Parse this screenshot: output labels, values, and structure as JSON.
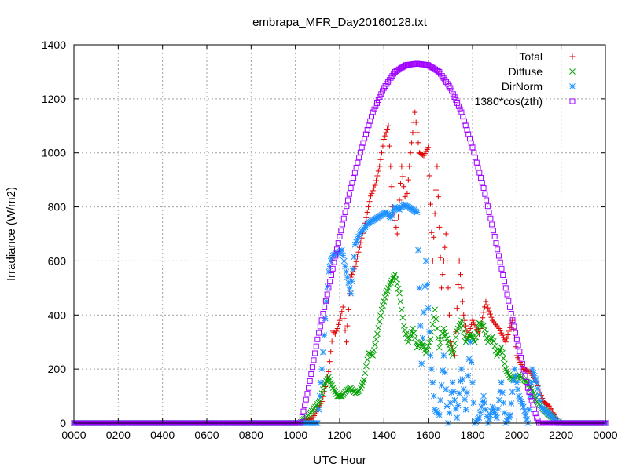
{
  "chart_data": {
    "type": "scatter",
    "title": "embrapa_MFR_Day20160128.txt",
    "xlabel": "UTC Hour",
    "ylabel": "Irradiance (W/m2)",
    "xlim": [
      0,
      24
    ],
    "ylim": [
      0,
      1400
    ],
    "x_ticks": [
      0,
      2,
      4,
      6,
      8,
      10,
      12,
      14,
      16,
      18,
      20,
      22,
      24
    ],
    "x_tick_labels": [
      "0000",
      "0200",
      "0400",
      "0600",
      "0800",
      "1000",
      "1200",
      "1400",
      "1600",
      "1800",
      "2000",
      "2200",
      "0000"
    ],
    "y_ticks": [
      0,
      200,
      400,
      600,
      800,
      1000,
      1200,
      1400
    ],
    "y_tick_labels": [
      "0",
      "200",
      "400",
      "600",
      "800",
      "1000",
      "1200",
      "1400"
    ],
    "grid": true,
    "legend_position": "top-right",
    "series": [
      {
        "name": "Total",
        "marker": "plus",
        "color": "#e00000",
        "points": [
          [
            0,
            0
          ],
          [
            3,
            0
          ],
          [
            6,
            0
          ],
          [
            9,
            0
          ],
          [
            10.2,
            0
          ],
          [
            10.8,
            20
          ],
          [
            11.2,
            80
          ],
          [
            11.5,
            190
          ],
          [
            11.7,
            340
          ],
          [
            11.8,
            330
          ],
          [
            11.9,
            350
          ],
          [
            12.0,
            380
          ],
          [
            12.15,
            430
          ],
          [
            12.3,
            300
          ],
          [
            12.5,
            540
          ],
          [
            12.7,
            580
          ],
          [
            12.9,
            650
          ],
          [
            13.1,
            720
          ],
          [
            13.4,
            840
          ],
          [
            13.6,
            880
          ],
          [
            13.8,
            950
          ],
          [
            14.0,
            1050
          ],
          [
            14.2,
            1100
          ],
          [
            14.4,
            800
          ],
          [
            14.6,
            700
          ],
          [
            14.8,
            950
          ],
          [
            15.0,
            800
          ],
          [
            15.2,
            1000
          ],
          [
            15.4,
            1150
          ],
          [
            15.6,
            1000
          ],
          [
            15.8,
            990
          ],
          [
            16.0,
            1020
          ],
          [
            16.2,
            600
          ],
          [
            16.4,
            950
          ],
          [
            16.6,
            500
          ],
          [
            16.8,
            700
          ],
          [
            17.0,
            300
          ],
          [
            17.2,
            250
          ],
          [
            17.4,
            600
          ],
          [
            17.6,
            400
          ],
          [
            17.8,
            320
          ],
          [
            18.0,
            380
          ],
          [
            18.3,
            330
          ],
          [
            18.6,
            450
          ],
          [
            18.9,
            380
          ],
          [
            19.2,
            350
          ],
          [
            19.5,
            300
          ],
          [
            19.8,
            380
          ],
          [
            20.0,
            250
          ],
          [
            20.3,
            200
          ],
          [
            20.6,
            190
          ],
          [
            20.9,
            150
          ],
          [
            21.2,
            80
          ],
          [
            21.5,
            60
          ],
          [
            21.9,
            0
          ],
          [
            24,
            0
          ]
        ]
      },
      {
        "name": "Diffuse",
        "marker": "x",
        "color": "#00a000",
        "points": [
          [
            0,
            0
          ],
          [
            3,
            0
          ],
          [
            6,
            0
          ],
          [
            9,
            0
          ],
          [
            10.2,
            0
          ],
          [
            10.6,
            30
          ],
          [
            10.9,
            60
          ],
          [
            11.1,
            80
          ],
          [
            11.3,
            140
          ],
          [
            11.5,
            170
          ],
          [
            11.7,
            130
          ],
          [
            11.9,
            100
          ],
          [
            12.1,
            100
          ],
          [
            12.3,
            120
          ],
          [
            12.5,
            130
          ],
          [
            12.7,
            110
          ],
          [
            12.9,
            120
          ],
          [
            13.1,
            160
          ],
          [
            13.3,
            260
          ],
          [
            13.5,
            250
          ],
          [
            13.7,
            330
          ],
          [
            13.9,
            420
          ],
          [
            14.1,
            480
          ],
          [
            14.3,
            520
          ],
          [
            14.5,
            550
          ],
          [
            14.7,
            480
          ],
          [
            14.9,
            360
          ],
          [
            15.1,
            300
          ],
          [
            15.3,
            350
          ],
          [
            15.5,
            280
          ],
          [
            15.7,
            300
          ],
          [
            15.9,
            260
          ],
          [
            16.1,
            310
          ],
          [
            16.3,
            420
          ],
          [
            16.5,
            280
          ],
          [
            16.7,
            350
          ],
          [
            16.9,
            300
          ],
          [
            17.1,
            250
          ],
          [
            17.3,
            340
          ],
          [
            17.5,
            380
          ],
          [
            17.7,
            300
          ],
          [
            17.9,
            330
          ],
          [
            18.1,
            300
          ],
          [
            18.3,
            370
          ],
          [
            18.5,
            360
          ],
          [
            18.7,
            300
          ],
          [
            18.9,
            320
          ],
          [
            19.1,
            250
          ],
          [
            19.3,
            280
          ],
          [
            19.5,
            200
          ],
          [
            19.7,
            170
          ],
          [
            19.9,
            160
          ],
          [
            20.1,
            180
          ],
          [
            20.3,
            160
          ],
          [
            20.5,
            150
          ],
          [
            20.7,
            120
          ],
          [
            20.9,
            80
          ],
          [
            21.2,
            50
          ],
          [
            21.6,
            20
          ],
          [
            21.9,
            0
          ],
          [
            24,
            0
          ]
        ]
      },
      {
        "name": "DirNorm",
        "marker": "star",
        "color": "#1e90ff",
        "points": [
          [
            0,
            0
          ],
          [
            3,
            0
          ],
          [
            6,
            0
          ],
          [
            9,
            0
          ],
          [
            10.5,
            0
          ],
          [
            11.0,
            0
          ],
          [
            11.2,
            200
          ],
          [
            11.4,
            450
          ],
          [
            11.5,
            560
          ],
          [
            11.6,
            600
          ],
          [
            11.7,
            620
          ],
          [
            11.9,
            630
          ],
          [
            12.1,
            640
          ],
          [
            12.3,
            560
          ],
          [
            12.5,
            480
          ],
          [
            12.7,
            660
          ],
          [
            12.9,
            700
          ],
          [
            13.1,
            720
          ],
          [
            13.3,
            740
          ],
          [
            13.5,
            750
          ],
          [
            13.7,
            760
          ],
          [
            13.9,
            770
          ],
          [
            14.1,
            780
          ],
          [
            14.3,
            760
          ],
          [
            14.5,
            800
          ],
          [
            14.7,
            790
          ],
          [
            14.9,
            810
          ],
          [
            15.1,
            800
          ],
          [
            15.3,
            790
          ],
          [
            15.5,
            780
          ],
          [
            15.7,
            220
          ],
          [
            15.9,
            600
          ],
          [
            16.1,
            250
          ],
          [
            16.3,
            50
          ],
          [
            16.5,
            30
          ],
          [
            16.7,
            250
          ],
          [
            16.9,
            0
          ],
          [
            17.1,
            150
          ],
          [
            17.3,
            20
          ],
          [
            17.5,
            200
          ],
          [
            17.7,
            50
          ],
          [
            17.9,
            300
          ],
          [
            18.1,
            0
          ],
          [
            18.3,
            20
          ],
          [
            18.5,
            100
          ],
          [
            18.7,
            0
          ],
          [
            18.9,
            60
          ],
          [
            19.1,
            20
          ],
          [
            19.3,
            150
          ],
          [
            19.5,
            0
          ],
          [
            19.7,
            30
          ],
          [
            19.9,
            200
          ],
          [
            20.1,
            100
          ],
          [
            20.3,
            60
          ],
          [
            20.5,
            0
          ],
          [
            20.7,
            200
          ],
          [
            20.9,
            150
          ],
          [
            21.1,
            60
          ],
          [
            21.5,
            30
          ],
          [
            21.9,
            0
          ],
          [
            24,
            0
          ]
        ]
      },
      {
        "name": "1380*cos(zth)",
        "marker": "square",
        "color": "#a000ff",
        "points": [
          [
            0,
            0
          ],
          [
            5,
            0
          ],
          [
            10.25,
            0
          ],
          [
            10.6,
            130
          ],
          [
            11.0,
            310
          ],
          [
            11.5,
            500
          ],
          [
            12.0,
            690
          ],
          [
            12.5,
            870
          ],
          [
            13.0,
            1020
          ],
          [
            13.5,
            1150
          ],
          [
            14.0,
            1240
          ],
          [
            14.5,
            1300
          ],
          [
            15.0,
            1325
          ],
          [
            15.5,
            1330
          ],
          [
            16.0,
            1325
          ],
          [
            16.5,
            1300
          ],
          [
            17.0,
            1240
          ],
          [
            17.5,
            1150
          ],
          [
            18.0,
            1020
          ],
          [
            18.5,
            870
          ],
          [
            19.0,
            690
          ],
          [
            19.5,
            500
          ],
          [
            20.0,
            310
          ],
          [
            20.5,
            130
          ],
          [
            20.9,
            20
          ],
          [
            21.0,
            0
          ],
          [
            24,
            0
          ]
        ]
      }
    ]
  }
}
